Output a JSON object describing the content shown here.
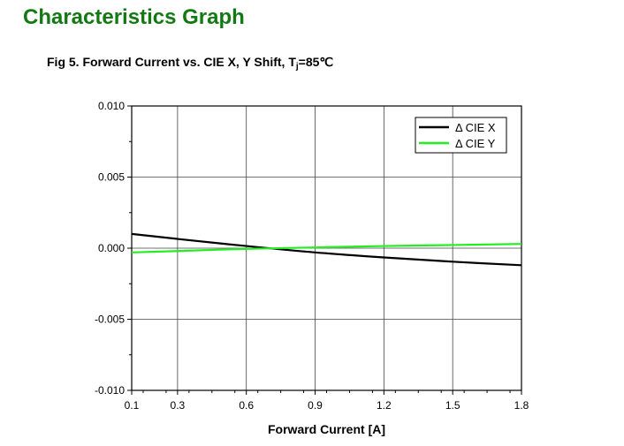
{
  "page": {
    "heading": "Characteristics Graph",
    "caption_prefix": "Fig 5. Forward Current vs. CIE X, Y Shift, T",
    "caption_sub": "j",
    "caption_suffix": "=85℃"
  },
  "colors": {
    "heading": "#137a13",
    "cie_x": "#000000",
    "cie_y": "#22ee22"
  },
  "chart_data": {
    "type": "line",
    "title": "Fig 5. Forward Current vs. CIE X, Y Shift, Tj=85℃",
    "xlabel": "Forward Current [A]",
    "ylabel": "",
    "xlim": [
      0.1,
      1.8
    ],
    "ylim": [
      -0.01,
      0.01
    ],
    "xticks": [
      0.1,
      0.3,
      0.6,
      0.9,
      1.2,
      1.5,
      1.8
    ],
    "xtick_labels": [
      "0.1",
      "0.3",
      "0.6",
      "0.9",
      "1.2",
      "1.5",
      "1.8"
    ],
    "yticks": [
      -0.01,
      -0.005,
      0.0,
      0.005,
      0.01
    ],
    "ytick_labels": [
      "-0.010",
      "-0.005",
      "0.000",
      "0.005",
      "0.010"
    ],
    "grid": true,
    "legend_position": "top-right",
    "series": [
      {
        "name": "Δ CIE X",
        "color": "#000000",
        "x": [
          0.1,
          0.3,
          0.6,
          0.9,
          1.2,
          1.5,
          1.8
        ],
        "y": [
          0.001,
          0.00065,
          0.00015,
          -0.0003,
          -0.00065,
          -0.00095,
          -0.0012
        ]
      },
      {
        "name": "Δ CIE Y",
        "color": "#22ee22",
        "x": [
          0.1,
          0.3,
          0.6,
          0.9,
          1.2,
          1.5,
          1.8
        ],
        "y": [
          -0.0003,
          -0.0002,
          -5e-05,
          5e-05,
          0.00015,
          0.00022,
          0.0003
        ]
      }
    ]
  }
}
